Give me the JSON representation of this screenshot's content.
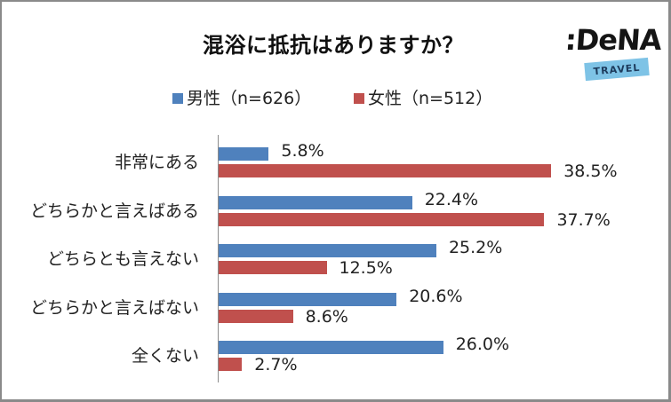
{
  "title": "混浴に抵抗はありますか？",
  "logo": {
    "word": ":DeNA",
    "banner": "TRAVEL",
    "banner_color": "#7ec3e6"
  },
  "legend": [
    {
      "label": "男性（n=626）",
      "color": "#4f81bd"
    },
    {
      "label": "女性（n=512）",
      "color": "#c0504d"
    }
  ],
  "colors": {
    "male": "#4f81bd",
    "female": "#c0504d",
    "axis": "#8c8c8c",
    "frame": "#8a8a8a"
  },
  "chart_data": {
    "type": "bar",
    "orientation": "horizontal",
    "title": "混浴に抵抗はありますか？",
    "xlabel": "",
    "ylabel": "",
    "categories": [
      "非常にある",
      "どちらかと言えばある",
      "どちらとも言えない",
      "どちらかと言えばない",
      "全くない"
    ],
    "series": [
      {
        "name": "男性（n=626）",
        "values": [
          5.8,
          22.4,
          25.2,
          20.6,
          26.0
        ],
        "labels": [
          "5.8%",
          "22.4%",
          "25.2%",
          "20.6%",
          "26.0%"
        ]
      },
      {
        "name": "女性（n=512）",
        "values": [
          38.5,
          37.7,
          12.5,
          8.6,
          2.7
        ],
        "labels": [
          "38.5%",
          "37.7%",
          "12.5%",
          "8.6%",
          "2.7%"
        ]
      }
    ],
    "unit": "%",
    "grid": false,
    "legend_position": "top",
    "data_labels": true,
    "xlim": [
      0,
      40
    ]
  }
}
